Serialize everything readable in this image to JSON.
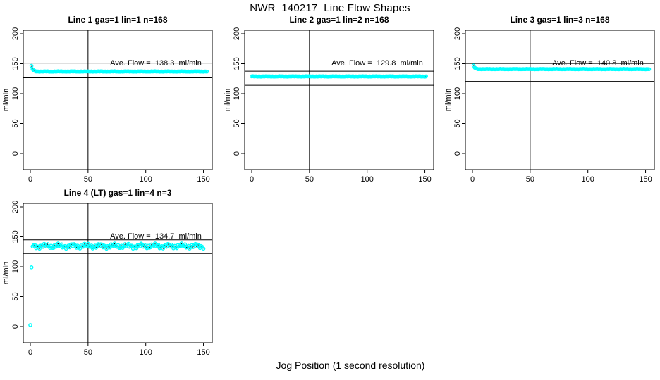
{
  "chart_data": {
    "type": "scatter",
    "title": "NWR_140217  Line Flow Shapes",
    "xlabel": "Jog Position (1 second resolution)",
    "ylabel": "ml/min",
    "x_ticks": [
      0,
      50,
      100,
      150
    ],
    "y_ticks": [
      0,
      50,
      100,
      150,
      200
    ],
    "xlim": [
      -6,
      157
    ],
    "ylim": [
      -29,
      206
    ],
    "grid": false,
    "legend": "none",
    "vline_x": 50,
    "point_color": "#00ffff",
    "line_color": "#000000",
    "background": "#ffffff",
    "annotation_pos": {
      "x_value": 109,
      "y_value": 150
    },
    "panels": [
      {
        "title": "Line 1 gas=1 lin=1 n=168",
        "n": 168,
        "ave_flow": 138.3,
        "ave_flow_label": "Ave. Flow =  138.3  ml/min",
        "ref_line_upper": 151,
        "ref_line_lower": 126.5,
        "series": {
          "x_start": 1,
          "x_end": 153,
          "flat_level": 137,
          "first_value": 146,
          "decay": 1.2,
          "noise_amp": 0.4
        },
        "outliers": []
      },
      {
        "title": "Line 2 gas=1 lin=2 n=168",
        "n": 168,
        "ave_flow": 129.8,
        "ave_flow_label": "Ave. Flow =  129.8  ml/min",
        "ref_line_upper": 137.5,
        "ref_line_lower": 114,
        "series": {
          "x_start": 0,
          "x_end": 151,
          "flat_level": 128.8,
          "first_value": 128.8,
          "decay": 1,
          "noise_amp": 0.4
        },
        "outliers": []
      },
      {
        "title": "Line 3 gas=1 lin=3 n=168",
        "n": 168,
        "ave_flow": 140.8,
        "ave_flow_label": "Ave. Flow =  140.8  ml/min",
        "ref_line_upper": 150.5,
        "ref_line_lower": 120.5,
        "series": {
          "x_start": 1,
          "x_end": 153,
          "flat_level": 141,
          "first_value": 146.5,
          "decay": 1.2,
          "noise_amp": 0.4
        },
        "outliers": []
      },
      {
        "title": "Line 4 (LT) gas=1 lin=4 n=3",
        "n": 3,
        "ave_flow": 134.7,
        "ave_flow_label": "Ave. Flow =  134.7  ml/min",
        "ref_line_upper": 145,
        "ref_line_lower": 122,
        "series": {
          "x_start": 2,
          "x_end": 150,
          "flat_level": 134.5,
          "first_value": 134.5,
          "decay": 1,
          "noise_amp": 4.5
        },
        "outliers": [
          [
            1,
            99
          ],
          [
            0,
            2.5
          ]
        ]
      }
    ]
  }
}
